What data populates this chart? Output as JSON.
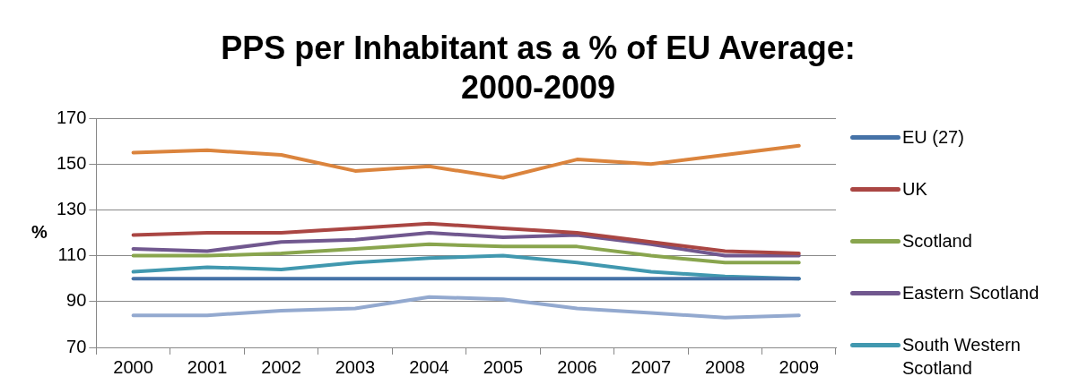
{
  "chart_data": {
    "type": "line",
    "title": "PPS per Inhabitant as a % of EU Average: 2000-2009",
    "ylabel": "%",
    "categories": [
      "2000",
      "2001",
      "2002",
      "2003",
      "2004",
      "2005",
      "2006",
      "2007",
      "2008",
      "2009"
    ],
    "series": [
      {
        "name": "EU (27)",
        "color": "#4572a7",
        "values": [
          100,
          100,
          100,
          100,
          100,
          100,
          100,
          100,
          100,
          100
        ]
      },
      {
        "name": "UK",
        "color": "#aa4643",
        "values": [
          119,
          120,
          120,
          122,
          124,
          122,
          120,
          116,
          112,
          111
        ]
      },
      {
        "name": "Scotland",
        "color": "#89a54e",
        "values": [
          110,
          110,
          111,
          113,
          115,
          114,
          114,
          110,
          107,
          107
        ]
      },
      {
        "name": "Eastern Scotland",
        "color": "#71588f",
        "values": [
          113,
          112,
          116,
          117,
          120,
          118,
          119,
          115,
          110,
          110
        ]
      },
      {
        "name": "South Western Scotland",
        "color": "#4198af",
        "values": [
          103,
          105,
          104,
          107,
          109,
          110,
          107,
          103,
          101,
          100
        ]
      },
      {
        "color": "#db843d",
        "values": [
          155,
          156,
          154,
          147,
          149,
          144,
          152,
          150,
          154,
          158
        ]
      },
      {
        "color": "#93a9cf",
        "values": [
          84,
          84,
          86,
          87,
          92,
          91,
          87,
          85,
          83,
          84
        ]
      }
    ],
    "ylim": [
      70,
      170
    ],
    "yticks": [
      70,
      90,
      110,
      130,
      150,
      170
    ],
    "grid": "y",
    "legend": "right",
    "marker": "none",
    "line_style": "solid"
  }
}
